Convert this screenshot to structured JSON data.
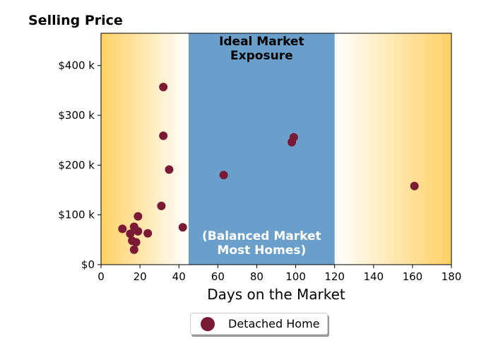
{
  "chart_data": {
    "type": "scatter",
    "ylabel": "Selling Price",
    "xlabel": "Days on the Market",
    "xlim": [
      0,
      180
    ],
    "ylim": [
      0,
      465000
    ],
    "xticks": [
      0,
      20,
      40,
      60,
      80,
      100,
      120,
      140,
      160,
      180
    ],
    "xtick_labels": [
      "0",
      "20",
      "40",
      "60",
      "80",
      "100",
      "120",
      "140",
      "160",
      "180"
    ],
    "yticks": [
      0,
      100000,
      200000,
      300000,
      400000
    ],
    "ytick_labels": [
      "$0",
      "$100 k",
      "$200 k",
      "$300 k",
      "$400 k"
    ],
    "grid": false,
    "legend_position": "bottom-center",
    "regions": {
      "ideal": {
        "x_range": [
          45,
          120
        ],
        "color": "#6a9fcb"
      },
      "gradient_color": "#ffd064",
      "top_label": [
        "Ideal Market",
        "Exposure"
      ],
      "bottom_label": [
        "(Balanced Market",
        "Most Homes)"
      ]
    },
    "series": [
      {
        "name": "Detached Home",
        "color": "#7a1a35",
        "points": [
          [
            11,
            72000
          ],
          [
            15,
            62000
          ],
          [
            16,
            48000
          ],
          [
            17,
            76000
          ],
          [
            17,
            30000
          ],
          [
            18,
            45000
          ],
          [
            19,
            97000
          ],
          [
            19,
            67000
          ],
          [
            24,
            63000
          ],
          [
            31,
            118000
          ],
          [
            32,
            357000
          ],
          [
            32,
            259000
          ],
          [
            35,
            191000
          ],
          [
            42,
            75000
          ],
          [
            63,
            180000
          ],
          [
            98,
            246000
          ],
          [
            99,
            256000
          ],
          [
            161,
            158000
          ]
        ]
      }
    ]
  }
}
